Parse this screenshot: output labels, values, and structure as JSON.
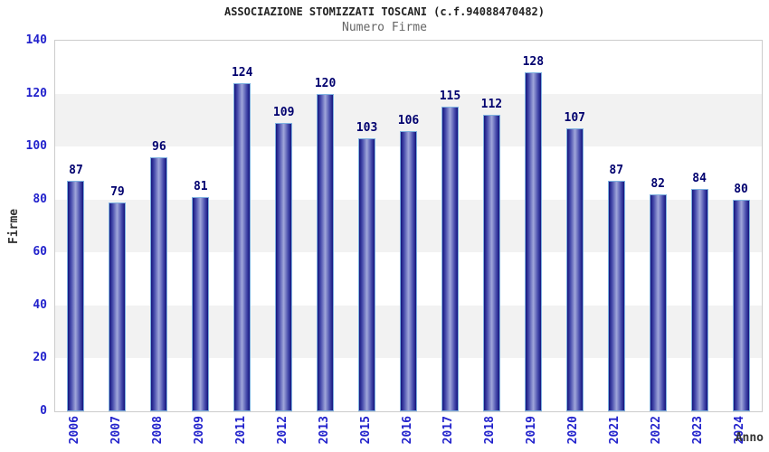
{
  "chart_data": {
    "type": "bar",
    "title": "ASSOCIAZIONE STOMIZZATI TOSCANI (c.f.94088470482)",
    "subtitle": "Numero Firme",
    "xlabel": "Anno",
    "ylabel": "Firme",
    "categories": [
      "2006",
      "2007",
      "2008",
      "2009",
      "2011",
      "2012",
      "2013",
      "2015",
      "2016",
      "2017",
      "2018",
      "2019",
      "2020",
      "2021",
      "2022",
      "2023",
      "2024"
    ],
    "values": [
      87,
      79,
      96,
      81,
      124,
      109,
      120,
      103,
      106,
      115,
      112,
      128,
      107,
      87,
      82,
      84,
      80
    ],
    "ylim": [
      0,
      140
    ],
    "yticks": [
      0,
      20,
      40,
      60,
      80,
      100,
      120,
      140
    ],
    "grid": "alternating-horizontal-bands",
    "legend_position": "none",
    "value_labels_shown": true
  },
  "colors": {
    "bar_edge": "#14147e",
    "bar_mid": "#4a4fae",
    "bar_center": "#a0a7da",
    "bar_border": "#7fb2e0",
    "tick_label": "#2222cc",
    "value_label": "#00006e",
    "band_gray": "#f2f2f2",
    "band_white": "#ffffff",
    "plot_border": "#cccccc",
    "title": "#222222",
    "subtitle": "#666666",
    "axis_title": "#333333"
  }
}
